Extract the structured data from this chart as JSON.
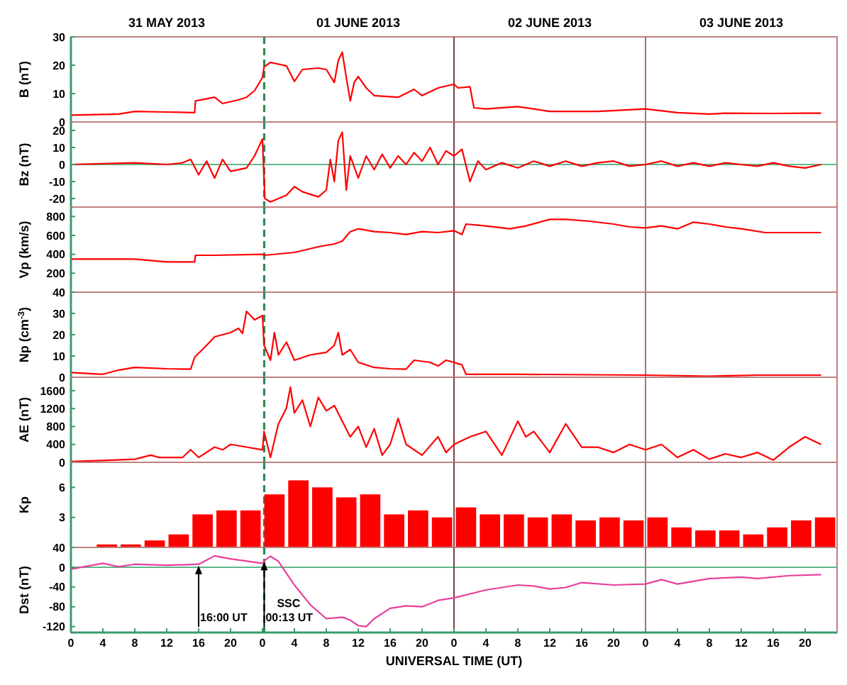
{
  "chart_data": [
    {
      "type": "line",
      "ylabel": "B (nT)",
      "xlim": [
        "2013-05-31T00:00",
        "2013-06-04T00:00"
      ],
      "ylim": [
        0,
        30
      ],
      "yticks": [
        0,
        10,
        20,
        30
      ],
      "tick_labels": "y",
      "annotations": [
        "31 MAY 2013",
        "01 JUNE 2013",
        "02 JUNE 2013",
        "03 JUNE 2013"
      ],
      "ref_lines": [
        {
          "axis": "x",
          "value": "2013-06-01T00:13",
          "color": "#2e8b57",
          "line_style": "dashed"
        },
        {
          "axis": "x",
          "value": "2013-06-02T00:00",
          "color": "#804040"
        },
        {
          "axis": "x",
          "value": "2013-06-03T00:00",
          "color": "#b07070"
        }
      ],
      "series": [
        {
          "color": "#ff0000",
          "x": [
            "2013-05-31T00:00",
            "2013-05-31T06:00",
            "2013-05-31T08:00",
            "2013-05-31T12:00",
            "2013-05-31T15:30",
            "2013-05-31T15:36",
            "2013-05-31T18:00",
            "2013-05-31T19:00",
            "2013-05-31T21:00",
            "2013-05-31T22:00",
            "2013-05-31T23:00",
            "2013-06-01T00:00",
            "2013-06-01T00:12",
            "2013-06-01T01:00",
            "2013-06-01T03:00",
            "2013-06-01T04:00",
            "2013-06-01T05:00",
            "2013-06-01T07:00",
            "2013-06-01T08:00",
            "2013-06-01T09:00",
            "2013-06-01T09:30",
            "2013-06-01T10:00",
            "2013-06-01T10:30",
            "2013-06-01T11:00",
            "2013-06-01T11:30",
            "2013-06-01T12:00",
            "2013-06-01T13:00",
            "2013-06-01T14:00",
            "2013-06-01T17:00",
            "2013-06-01T19:00",
            "2013-06-01T20:00",
            "2013-06-01T22:00",
            "2013-06-02T00:00",
            "2013-06-02T00:30",
            "2013-06-02T02:00",
            "2013-06-02T02:30",
            "2013-06-02T04:00",
            "2013-06-02T08:00",
            "2013-06-02T10:00",
            "2013-06-02T12:00",
            "2013-06-02T14:00",
            "2013-06-02T18:00",
            "2013-06-03T00:00",
            "2013-06-03T04:00",
            "2013-06-03T08:00",
            "2013-06-03T10:00",
            "2013-06-03T16:00",
            "2013-06-03T20:00",
            "2013-06-03T22:00"
          ],
          "values": [
            2.4,
            2.8,
            3.7,
            3.5,
            3.3,
            7.4,
            8.7,
            6.5,
            7.8,
            8.7,
            11,
            15.7,
            19.4,
            21,
            19.8,
            14.3,
            18.5,
            19,
            18.5,
            13.9,
            21.7,
            24.6,
            15.7,
            7.4,
            14,
            16,
            12,
            9.3,
            8.7,
            11.5,
            9.3,
            12,
            13.3,
            12,
            12.4,
            5,
            4.6,
            5.4,
            4.6,
            3.7,
            3.7,
            3.7,
            4.6,
            3.3,
            2.8,
            3.1,
            3,
            3.1,
            3.1
          ]
        }
      ]
    },
    {
      "type": "line",
      "ylabel": "Bz (nT)",
      "xlim": [
        "2013-05-31T00:00",
        "2013-06-04T00:00"
      ],
      "ylim": [
        -25,
        25
      ],
      "yticks": [
        -20,
        -10,
        0,
        10,
        20
      ],
      "tick_labels": "y",
      "ref_lines": [
        {
          "axis": "y",
          "value": 0,
          "color": "#5fb88a"
        },
        {
          "axis": "x",
          "value": "2013-06-01T00:13",
          "color": "#2e8b57",
          "line_style": "dashed"
        },
        {
          "axis": "x",
          "value": "2013-06-02T00:00",
          "color": "#804040"
        },
        {
          "axis": "x",
          "value": "2013-06-03T00:00",
          "color": "#b07070"
        }
      ],
      "series": [
        {
          "color": "#ff0000",
          "x": [
            "2013-05-31T00:00",
            "2013-05-31T08:00",
            "2013-05-31T12:00",
            "2013-05-31T14:00",
            "2013-05-31T15:00",
            "2013-05-31T16:00",
            "2013-05-31T17:00",
            "2013-05-31T18:00",
            "2013-05-31T19:00",
            "2013-05-31T20:00",
            "2013-05-31T22:00",
            "2013-05-31T23:00",
            "2013-06-01T00:00",
            "2013-06-01T00:18",
            "2013-06-01T01:00",
            "2013-06-01T03:00",
            "2013-06-01T04:00",
            "2013-06-01T05:00",
            "2013-06-01T07:00",
            "2013-06-01T08:00",
            "2013-06-01T08:30",
            "2013-06-01T09:00",
            "2013-06-01T09:30",
            "2013-06-01T10:00",
            "2013-06-01T10:30",
            "2013-06-01T11:00",
            "2013-06-01T12:00",
            "2013-06-01T13:00",
            "2013-06-01T14:00",
            "2013-06-01T15:00",
            "2013-06-01T16:00",
            "2013-06-01T17:00",
            "2013-06-01T18:00",
            "2013-06-01T19:00",
            "2013-06-01T20:00",
            "2013-06-01T21:00",
            "2013-06-01T22:00",
            "2013-06-01T23:00",
            "2013-06-02T00:00",
            "2013-06-02T01:00",
            "2013-06-02T02:00",
            "2013-06-02T03:00",
            "2013-06-02T04:00",
            "2013-06-02T06:00",
            "2013-06-02T08:00",
            "2013-06-02T10:00",
            "2013-06-02T12:00",
            "2013-06-02T14:00",
            "2013-06-02T16:00",
            "2013-06-02T18:00",
            "2013-06-02T20:00",
            "2013-06-02T22:00",
            "2013-06-03T00:00",
            "2013-06-03T02:00",
            "2013-06-03T04:00",
            "2013-06-03T06:00",
            "2013-06-03T08:00",
            "2013-06-03T10:00",
            "2013-06-03T12:00",
            "2013-06-03T14:00",
            "2013-06-03T16:00",
            "2013-06-03T18:00",
            "2013-06-03T20:00",
            "2013-06-03T22:00"
          ],
          "values": [
            0,
            1,
            0,
            1,
            3,
            -6,
            2,
            -8,
            3,
            -4,
            -2,
            5,
            15,
            -20,
            -22,
            -18,
            -13,
            -16,
            -19,
            -15,
            3,
            -10,
            14,
            19,
            -15,
            5,
            -8,
            5,
            -3,
            6,
            -2,
            5,
            0,
            7,
            2,
            10,
            0,
            8,
            5,
            9,
            -10,
            2,
            -3,
            1,
            -2,
            2,
            -1,
            2,
            -1,
            1,
            2,
            -1,
            0,
            2,
            -1,
            1,
            -1,
            1,
            0,
            -1,
            1,
            -1,
            -2,
            0
          ]
        }
      ]
    },
    {
      "type": "line",
      "ylabel": "Vp (km/s)",
      "xlim": [
        "2013-05-31T00:00",
        "2013-06-04T00:00"
      ],
      "ylim": [
        0,
        900
      ],
      "yticks": [
        200,
        400,
        600,
        800
      ],
      "tick_labels": "y",
      "ref_lines": [
        {
          "axis": "x",
          "value": "2013-06-01T00:13",
          "color": "#2e8b57",
          "line_style": "dashed"
        },
        {
          "axis": "x",
          "value": "2013-06-02T00:00",
          "color": "#804040"
        },
        {
          "axis": "x",
          "value": "2013-06-03T00:00",
          "color": "#b07070"
        }
      ],
      "series": [
        {
          "color": "#ff0000",
          "x": [
            "2013-05-31T00:00",
            "2013-05-31T08:00",
            "2013-05-31T12:00",
            "2013-05-31T15:30",
            "2013-05-31T15:36",
            "2013-05-31T18:00",
            "2013-06-01T00:00",
            "2013-06-01T00:12",
            "2013-06-01T04:00",
            "2013-06-01T07:00",
            "2013-06-01T09:00",
            "2013-06-01T10:00",
            "2013-06-01T11:00",
            "2013-06-01T12:00",
            "2013-06-01T14:00",
            "2013-06-01T16:00",
            "2013-06-01T18:00",
            "2013-06-01T20:00",
            "2013-06-01T22:00",
            "2013-06-02T00:00",
            "2013-06-02T01:00",
            "2013-06-02T01:30",
            "2013-06-02T04:00",
            "2013-06-02T07:00",
            "2013-06-02T09:00",
            "2013-06-02T12:00",
            "2013-06-02T14:00",
            "2013-06-02T17:00",
            "2013-06-02T20:00",
            "2013-06-02T22:00",
            "2013-06-03T00:00",
            "2013-06-03T02:00",
            "2013-06-03T04:00",
            "2013-06-03T06:00",
            "2013-06-03T08:00",
            "2013-06-03T10:00",
            "2013-06-03T12:00",
            "2013-06-03T15:00",
            "2013-06-03T18:00",
            "2013-06-03T22:00"
          ],
          "values": [
            350,
            350,
            320,
            320,
            390,
            390,
            400,
            390,
            420,
            480,
            510,
            540,
            640,
            670,
            640,
            630,
            610,
            640,
            630,
            650,
            610,
            720,
            700,
            670,
            700,
            770,
            770,
            750,
            720,
            690,
            680,
            700,
            670,
            740,
            720,
            690,
            670,
            630,
            630,
            630
          ]
        }
      ]
    },
    {
      "type": "line",
      "ylabel": "Np (cm$^{-3}$)",
      "xlim": [
        "2013-05-31T00:00",
        "2013-06-04T00:00"
      ],
      "ylim": [
        0,
        40
      ],
      "yticks": [
        0,
        10,
        20,
        30,
        40
      ],
      "tick_labels": "y",
      "ref_lines": [
        {
          "axis": "x",
          "value": "2013-06-01T00:13",
          "color": "#2e8b57",
          "line_style": "dashed"
        },
        {
          "axis": "x",
          "value": "2013-06-02T00:00",
          "color": "#804040"
        },
        {
          "axis": "x",
          "value": "2013-06-03T00:00",
          "color": "#b07070"
        }
      ],
      "series": [
        {
          "color": "#ff0000",
          "x": [
            "2013-05-31T00:00",
            "2013-05-31T04:00",
            "2013-05-31T06:00",
            "2013-05-31T08:00",
            "2013-05-31T12:00",
            "2013-05-31T15:00",
            "2013-05-31T15:30",
            "2013-05-31T17:00",
            "2013-05-31T18:00",
            "2013-05-31T20:00",
            "2013-05-31T21:00",
            "2013-05-31T21:30",
            "2013-05-31T22:00",
            "2013-05-31T23:00",
            "2013-06-01T00:00",
            "2013-06-01T00:12",
            "2013-06-01T01:00",
            "2013-06-01T01:30",
            "2013-06-01T02:00",
            "2013-06-01T03:00",
            "2013-06-01T04:00",
            "2013-06-01T06:00",
            "2013-06-01T08:00",
            "2013-06-01T09:00",
            "2013-06-01T09:30",
            "2013-06-01T10:00",
            "2013-06-01T11:00",
            "2013-06-01T12:00",
            "2013-06-01T14:00",
            "2013-06-01T16:00",
            "2013-06-01T18:00",
            "2013-06-01T19:00",
            "2013-06-01T21:00",
            "2013-06-01T22:00",
            "2013-06-01T23:00",
            "2013-06-02T00:00",
            "2013-06-02T01:00",
            "2013-06-02T01:30",
            "2013-06-02T08:00",
            "2013-06-03T00:00",
            "2013-06-03T08:00",
            "2013-06-03T14:00",
            "2013-06-03T22:00"
          ],
          "values": [
            2.2,
            1.4,
            3.4,
            4.6,
            4,
            3.8,
            9.4,
            15,
            19,
            21,
            23,
            20.6,
            31,
            27,
            29,
            15,
            8,
            21,
            10.5,
            16.5,
            8,
            10.5,
            11.7,
            15,
            21,
            10.5,
            13,
            7,
            4.6,
            4,
            3.8,
            8,
            7,
            5.3,
            8,
            7,
            5.8,
            1.4,
            1.4,
            1,
            0.5,
            1,
            1
          ]
        }
      ]
    },
    {
      "type": "line",
      "ylabel": "AE (nT)",
      "xlim": [
        "2013-05-31T00:00",
        "2013-06-04T00:00"
      ],
      "ylim": [
        0,
        1900
      ],
      "yticks": [
        0,
        400,
        800,
        1200,
        1600
      ],
      "tick_labels": "y",
      "ref_lines": [
        {
          "axis": "x",
          "value": "2013-06-01T00:13",
          "color": "#2e8b57",
          "line_style": "dashed"
        },
        {
          "axis": "x",
          "value": "2013-06-02T00:00",
          "color": "#804040"
        },
        {
          "axis": "x",
          "value": "2013-06-03T00:00",
          "color": "#b07070"
        }
      ],
      "series": [
        {
          "color": "#ff0000",
          "x": [
            "2013-05-31T00:00",
            "2013-05-31T04:00",
            "2013-05-31T08:00",
            "2013-05-31T10:00",
            "2013-05-31T11:00",
            "2013-05-31T14:00",
            "2013-05-31T15:00",
            "2013-05-31T16:00",
            "2013-05-31T18:00",
            "2013-05-31T19:00",
            "2013-05-31T20:00",
            "2013-05-31T22:00",
            "2013-06-01T00:00",
            "2013-06-01T00:12",
            "2013-06-01T01:00",
            "2013-06-01T02:00",
            "2013-06-01T03:00",
            "2013-06-01T03:30",
            "2013-06-01T04:00",
            "2013-06-01T05:00",
            "2013-06-01T06:00",
            "2013-06-01T07:00",
            "2013-06-01T08:00",
            "2013-06-01T09:00",
            "2013-06-01T10:00",
            "2013-06-01T11:00",
            "2013-06-01T12:00",
            "2013-06-01T13:00",
            "2013-06-01T14:00",
            "2013-06-01T15:00",
            "2013-06-01T16:00",
            "2013-06-01T17:00",
            "2013-06-01T18:00",
            "2013-06-01T20:00",
            "2013-06-01T22:00",
            "2013-06-01T23:00",
            "2013-06-02T00:00",
            "2013-06-02T02:00",
            "2013-06-02T04:00",
            "2013-06-02T06:00",
            "2013-06-02T08:00",
            "2013-06-02T09:00",
            "2013-06-02T10:00",
            "2013-06-02T12:00",
            "2013-06-02T14:00",
            "2013-06-02T16:00",
            "2013-06-02T18:00",
            "2013-06-02T20:00",
            "2013-06-02T22:00",
            "2013-06-03T00:00",
            "2013-06-03T02:00",
            "2013-06-03T04:00",
            "2013-06-03T06:00",
            "2013-06-03T08:00",
            "2013-06-03T10:00",
            "2013-06-03T12:00",
            "2013-06-03T14:00",
            "2013-06-03T16:00",
            "2013-06-03T18:00",
            "2013-06-03T20:00",
            "2013-06-03T22:00"
          ],
          "values": [
            20,
            40,
            70,
            160,
            110,
            110,
            280,
            110,
            340,
            280,
            400,
            340,
            280,
            690,
            110,
            860,
            1210,
            1680,
            1100,
            1390,
            800,
            1450,
            1150,
            1270,
            920,
            570,
            800,
            340,
            750,
            160,
            400,
            980,
            400,
            160,
            570,
            220,
            400,
            570,
            690,
            160,
            920,
            570,
            690,
            220,
            860,
            340,
            340,
            220,
            400,
            280,
            400,
            110,
            280,
            70,
            190,
            110,
            220,
            50,
            340,
            570,
            400
          ]
        }
      ]
    },
    {
      "type": "bar",
      "ylabel": "Kp",
      "xlim": [
        "2013-05-31T00:00",
        "2013-06-04T00:00"
      ],
      "ylim": [
        0,
        8.5
      ],
      "yticks": [
        3,
        6
      ],
      "tick_labels": "y",
      "ref_lines": [
        {
          "axis": "x",
          "value": "2013-06-01T00:13",
          "color": "#2e8b57",
          "line_style": "dashed"
        },
        {
          "axis": "x",
          "value": "2013-06-02T00:00",
          "color": "#804040"
        },
        {
          "axis": "x",
          "value": "2013-06-03T00:00",
          "color": "#b07070"
        }
      ],
      "series": [
        {
          "color": "#ff0000",
          "x": [
            "2013-05-31T01:30",
            "2013-05-31T04:30",
            "2013-05-31T07:30",
            "2013-05-31T10:30",
            "2013-05-31T13:30",
            "2013-05-31T16:30",
            "2013-05-31T19:30",
            "2013-05-31T22:30",
            "2013-06-01T01:30",
            "2013-06-01T04:30",
            "2013-06-01T07:30",
            "2013-06-01T10:30",
            "2013-06-01T13:30",
            "2013-06-01T16:30",
            "2013-06-01T19:30",
            "2013-06-01T22:30",
            "2013-06-02T01:30",
            "2013-06-02T04:30",
            "2013-06-02T07:30",
            "2013-06-02T10:30",
            "2013-06-02T13:30",
            "2013-06-02T16:30",
            "2013-06-02T19:30",
            "2013-06-02T22:30",
            "2013-06-03T01:30",
            "2013-06-03T04:30",
            "2013-06-03T07:30",
            "2013-06-03T10:30",
            "2013-06-03T13:30",
            "2013-06-03T16:30",
            "2013-06-03T19:30",
            "2013-06-03T22:30"
          ],
          "values": [
            0,
            0.3,
            0.3,
            0.7,
            1.3,
            3.3,
            3.7,
            3.7,
            5.3,
            6.7,
            6,
            5,
            5.3,
            3.3,
            3.7,
            3,
            4,
            3.3,
            3.3,
            3,
            3.3,
            2.7,
            3,
            2.7,
            3,
            2,
            1.7,
            1.7,
            1.3,
            2,
            2.7,
            3
          ]
        }
      ]
    },
    {
      "type": "line",
      "ylabel": "Dst (nT)",
      "xlabel": "UNIVERSAL TIME (UT)",
      "xlim": [
        "2013-05-31T00:00",
        "2013-06-04T00:00"
      ],
      "ylim": [
        -132,
        40
      ],
      "yticks": [
        -120,
        -80,
        -40,
        0,
        40
      ],
      "xticks": [
        {
          "value": "2013-05-31T00:00",
          "label": "0"
        },
        {
          "value": "2013-05-31T04:00",
          "label": "4"
        },
        {
          "value": "2013-05-31T08:00",
          "label": "8"
        },
        {
          "value": "2013-05-31T12:00",
          "label": "12"
        },
        {
          "value": "2013-05-31T16:00",
          "label": "16"
        },
        {
          "value": "2013-05-31T20:00",
          "label": "20"
        },
        {
          "value": "2013-06-01T00:00",
          "label": "0"
        },
        {
          "value": "2013-06-01T04:00",
          "label": "4"
        },
        {
          "value": "2013-06-01T08:00",
          "label": "8"
        },
        {
          "value": "2013-06-01T12:00",
          "label": "12"
        },
        {
          "value": "2013-06-01T16:00",
          "label": "16"
        },
        {
          "value": "2013-06-01T20:00",
          "label": "20"
        },
        {
          "value": "2013-06-02T00:00",
          "label": "0"
        },
        {
          "value": "2013-06-02T04:00",
          "label": "4"
        },
        {
          "value": "2013-06-02T08:00",
          "label": "8"
        },
        {
          "value": "2013-06-02T12:00",
          "label": "12"
        },
        {
          "value": "2013-06-02T16:00",
          "label": "16"
        },
        {
          "value": "2013-06-02T20:00",
          "label": "20"
        },
        {
          "value": "2013-06-03T00:00",
          "label": "0"
        },
        {
          "value": "2013-06-03T04:00",
          "label": "4"
        },
        {
          "value": "2013-06-03T08:00",
          "label": "8"
        },
        {
          "value": "2013-06-03T12:00",
          "label": "12"
        },
        {
          "value": "2013-06-03T16:00",
          "label": "16"
        },
        {
          "value": "2013-06-03T20:00",
          "label": "20"
        }
      ],
      "ref_lines": [
        {
          "axis": "y",
          "value": 0,
          "color": "#5fb88a"
        },
        {
          "axis": "x",
          "value": "2013-06-01T00:13",
          "color": "#2e8b57",
          "line_style": "dashed"
        },
        {
          "axis": "x",
          "value": "2013-06-02T00:00",
          "color": "#804040"
        },
        {
          "axis": "x",
          "value": "2013-06-03T00:00",
          "color": "#b07070"
        },
        {
          "axis": "x",
          "value": "2013-05-31T16:00",
          "label": "16:00 UT",
          "color": "#000000"
        },
        {
          "axis": "x",
          "value": "2013-06-01T00:13",
          "label": "SSC 00:13 UT",
          "color": "#000000"
        }
      ],
      "series": [
        {
          "color": "#e8409a",
          "x": [
            "2013-05-31T00:00",
            "2013-05-31T04:00",
            "2013-05-31T06:00",
            "2013-05-31T08:00",
            "2013-05-31T12:00",
            "2013-05-31T16:00",
            "2013-05-31T18:00",
            "2013-05-31T20:00",
            "2013-06-01T00:00",
            "2013-06-01T00:18",
            "2013-06-01T01:00",
            "2013-06-01T02:00",
            "2013-06-01T04:00",
            "2013-06-01T06:00",
            "2013-06-01T08:00",
            "2013-06-01T10:00",
            "2013-06-01T11:00",
            "2013-06-01T12:00",
            "2013-06-01T13:00",
            "2013-06-01T14:00",
            "2013-06-01T16:00",
            "2013-06-01T18:00",
            "2013-06-01T20:00",
            "2013-06-01T22:00",
            "2013-06-02T00:00",
            "2013-06-02T04:00",
            "2013-06-02T08:00",
            "2013-06-02T10:00",
            "2013-06-02T12:00",
            "2013-06-02T14:00",
            "2013-06-02T16:00",
            "2013-06-02T20:00",
            "2013-06-03T00:00",
            "2013-06-03T02:00",
            "2013-06-03T04:00",
            "2013-06-03T08:00",
            "2013-06-03T12:00",
            "2013-06-03T14:00",
            "2013-06-03T18:00",
            "2013-06-03T22:00"
          ],
          "values": [
            -4,
            8,
            1,
            6,
            4,
            6,
            23,
            17,
            8,
            14,
            22,
            12,
            -36,
            -76,
            -104,
            -101,
            -107,
            -118,
            -120,
            -104,
            -83,
            -78,
            -80,
            -67,
            -62,
            -46,
            -36,
            -38,
            -44,
            -41,
            -31,
            -36,
            -34,
            -25,
            -34,
            -23,
            -20,
            -23,
            -17,
            -15
          ]
        }
      ]
    }
  ]
}
